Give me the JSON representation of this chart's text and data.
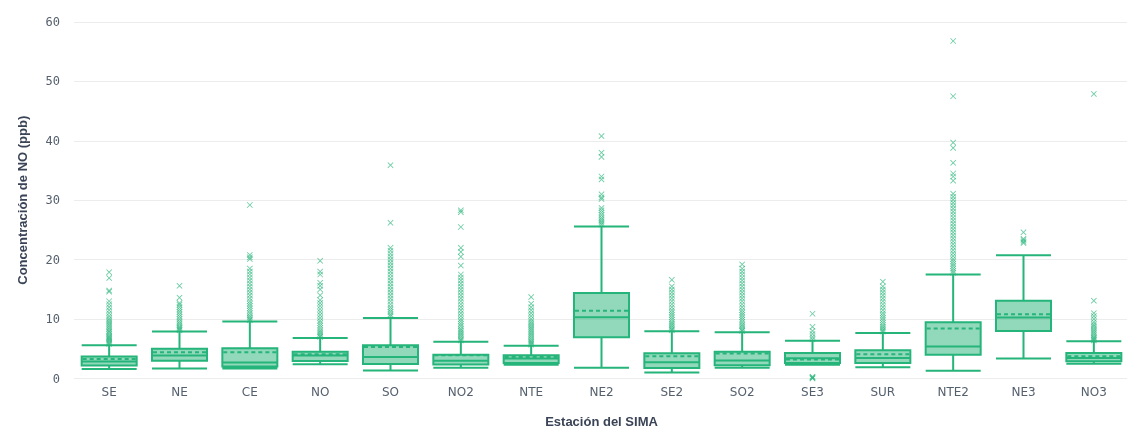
{
  "chart_data": {
    "type": "box",
    "xlabel": "Estación del SIMA",
    "ylabel": "Concentración de NO (ppb)",
    "categories": [
      "SE",
      "NE",
      "CE",
      "NO",
      "SO",
      "NO2",
      "NTE",
      "NE2",
      "SE2",
      "SO2",
      "SE3",
      "SUR",
      "NTE2",
      "NE3",
      "NO3"
    ],
    "color": "#25b479",
    "marker": "cross",
    "grid": "y",
    "ylim": [
      0,
      60
    ],
    "yticks": [
      0,
      10,
      20,
      30,
      40,
      50,
      60
    ],
    "boxes": [
      {
        "low": 1.6,
        "q1": 2.2,
        "median": 2.85,
        "q3": 3.7,
        "high": 5.6,
        "mean": 3.3,
        "outliers": [
          5.8,
          6.0,
          6.2,
          6.4,
          6.6,
          6.8,
          7.0,
          7.2,
          7.5,
          7.8,
          8.0,
          8.3,
          8.6,
          8.9,
          9.2,
          9.5,
          9.8,
          10.1,
          10.5,
          11.0,
          11.5,
          12.0,
          12.5,
          13.0,
          14.6,
          14.8,
          16.9,
          17.9
        ]
      },
      {
        "low": 1.7,
        "q1": 3.0,
        "median": 3.85,
        "q3": 5.0,
        "high": 7.9,
        "mean": 4.4,
        "outliers": [
          8.1,
          8.3,
          8.5,
          8.7,
          9.0,
          9.3,
          9.6,
          10.0,
          10.4,
          10.8,
          11.2,
          11.6,
          12.0,
          12.4,
          12.7,
          13.6,
          15.6
        ]
      },
      {
        "low": 1.7,
        "q1": 2.0,
        "median": 2.7,
        "q3": 5.1,
        "high": 9.6,
        "mean": 4.4,
        "outliers": [
          9.8,
          10.0,
          10.3,
          10.6,
          11.0,
          11.4,
          11.8,
          12.2,
          12.6,
          13.0,
          13.5,
          14.0,
          14.5,
          15.0,
          15.5,
          16.0,
          16.5,
          17.0,
          17.5,
          18.0,
          18.5,
          20.1,
          20.4,
          20.8,
          29.2
        ]
      },
      {
        "low": 2.4,
        "q1": 2.95,
        "median": 3.85,
        "q3": 4.5,
        "high": 6.8,
        "mean": 4.1,
        "outliers": [
          7.0,
          7.2,
          7.5,
          7.8,
          8.1,
          8.5,
          8.9,
          9.3,
          9.7,
          10.2,
          10.7,
          11.2,
          11.7,
          12.2,
          12.7,
          13.2,
          14.0,
          15.0,
          15.6,
          16.1,
          17.5,
          18.0,
          19.8
        ]
      },
      {
        "low": 1.35,
        "q1": 2.45,
        "median": 3.6,
        "q3": 5.6,
        "high": 10.2,
        "mean": 5.3,
        "outliers": [
          10.5,
          10.8,
          11.2,
          11.6,
          12.0,
          12.5,
          13.0,
          13.5,
          14.0,
          14.5,
          15.0,
          15.5,
          16.0,
          16.5,
          17.0,
          17.5,
          18.0,
          18.5,
          19.0,
          19.5,
          20.0,
          20.5,
          21.0,
          21.5,
          22.0,
          26.2,
          35.9
        ]
      },
      {
        "low": 1.8,
        "q1": 2.35,
        "median": 3.0,
        "q3": 4.0,
        "high": 6.2,
        "mean": 3.9,
        "outliers": [
          6.4,
          6.6,
          6.9,
          7.2,
          7.5,
          7.8,
          8.1,
          8.4,
          8.8,
          9.2,
          9.6,
          10.0,
          10.5,
          11.0,
          11.5,
          12.0,
          12.5,
          13.0,
          13.5,
          14.0,
          14.5,
          15.0,
          15.5,
          16.0,
          16.5,
          17.0,
          17.5,
          19.0,
          20.5,
          21.3,
          22.0,
          25.5,
          28.0,
          28.3
        ]
      },
      {
        "low": 2.3,
        "q1": 2.6,
        "median": 3.35,
        "q3": 3.9,
        "high": 5.5,
        "mean": 3.6,
        "outliers": [
          5.7,
          5.9,
          6.1,
          6.3,
          6.6,
          6.9,
          7.2,
          7.5,
          7.8,
          8.1,
          8.4,
          8.7,
          9.0,
          9.3,
          9.6,
          10.0,
          10.5,
          11.0,
          11.5,
          12.0,
          12.6,
          13.7
        ]
      },
      {
        "low": 1.8,
        "q1": 6.95,
        "median": 10.3,
        "q3": 14.4,
        "high": 25.6,
        "mean": 11.4,
        "outliers": [
          25.9,
          26.2,
          26.5,
          26.8,
          27.1,
          27.5,
          27.9,
          28.3,
          28.7,
          30.2,
          30.5,
          31.0,
          33.5,
          34.0,
          37.3,
          38.0,
          40.8
        ]
      },
      {
        "low": 1.0,
        "q1": 1.75,
        "median": 2.75,
        "q3": 4.25,
        "high": 7.95,
        "mean": 3.75,
        "outliers": [
          8.1,
          8.3,
          8.6,
          8.9,
          9.2,
          9.5,
          9.9,
          10.3,
          10.7,
          11.1,
          11.5,
          12.0,
          12.5,
          13.0,
          13.5,
          14.0,
          14.5,
          15.0,
          15.5,
          16.6
        ]
      },
      {
        "low": 1.8,
        "q1": 2.25,
        "median": 3.05,
        "q3": 4.5,
        "high": 7.8,
        "mean": 4.2,
        "outliers": [
          8.0,
          8.2,
          8.5,
          8.8,
          9.1,
          9.5,
          9.9,
          10.3,
          10.7,
          11.1,
          11.5,
          12.0,
          12.5,
          13.0,
          13.5,
          14.0,
          14.5,
          15.0,
          15.5,
          16.0,
          16.5,
          17.0,
          17.5,
          18.0,
          18.5,
          19.2
        ]
      },
      {
        "low": 2.3,
        "q1": 2.6,
        "median": 3.4,
        "q3": 4.3,
        "high": 6.35,
        "mean": 3.2,
        "outliers": [
          0,
          0.1,
          0.2,
          0.3,
          6.6,
          7.0,
          7.5,
          8.0,
          8.7,
          10.9
        ]
      },
      {
        "low": 1.9,
        "q1": 2.6,
        "median": 3.45,
        "q3": 4.75,
        "high": 7.65,
        "mean": 4.1,
        "outliers": [
          7.9,
          8.1,
          8.4,
          8.7,
          9.0,
          9.4,
          9.8,
          10.2,
          10.6,
          11.0,
          11.5,
          12.0,
          12.5,
          13.0,
          13.5,
          14.0,
          14.5,
          15.0,
          15.5,
          16.3
        ]
      },
      {
        "low": 1.3,
        "q1": 4.0,
        "median": 5.4,
        "q3": 9.45,
        "high": 17.5,
        "mean": 8.4,
        "outliers": [
          17.8,
          18.1,
          18.5,
          18.9,
          19.3,
          19.7,
          20.1,
          20.6,
          21.1,
          21.6,
          22.1,
          22.6,
          23.1,
          23.6,
          24.1,
          24.6,
          25.1,
          25.6,
          26.1,
          26.6,
          27.1,
          27.6,
          28.1,
          28.6,
          29.1,
          29.6,
          30.1,
          30.6,
          31.1,
          33.3,
          34.0,
          34.5,
          36.3,
          38.8,
          39.7,
          47.5,
          56.8
        ]
      },
      {
        "low": 3.35,
        "q1": 8.0,
        "median": 10.25,
        "q3": 13.1,
        "high": 20.75,
        "mean": 10.8,
        "outliers": [
          22.8,
          23.0,
          23.3,
          23.5,
          24.6
        ]
      },
      {
        "low": 2.5,
        "q1": 2.9,
        "median": 3.45,
        "q3": 4.3,
        "high": 6.25,
        "mean": 3.75,
        "outliers": [
          6.4,
          6.6,
          6.8,
          7.0,
          7.3,
          7.6,
          7.9,
          8.2,
          8.5,
          8.8,
          9.1,
          9.5,
          10.0,
          10.5,
          11.0,
          13.1,
          47.9
        ]
      }
    ]
  }
}
